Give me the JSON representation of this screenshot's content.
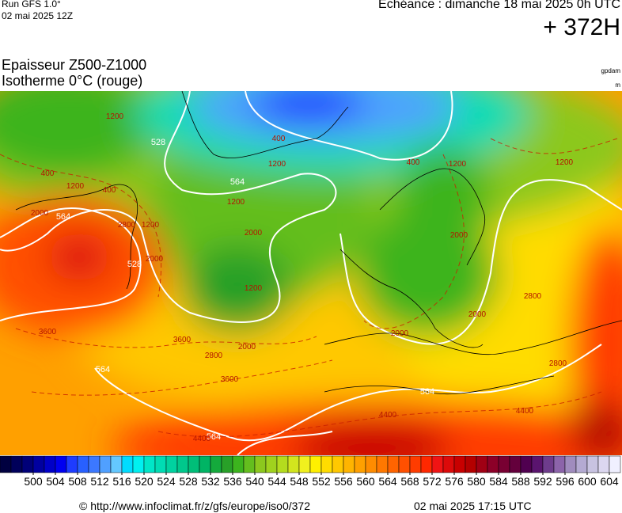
{
  "header": {
    "run": "Run GFS 1.0°",
    "run_date": "02 mai 2025 12Z",
    "valid": "Echéance : dimanche 18 mai 2025 0h UTC",
    "lead": "+ 372H",
    "title": "Epaisseur Z500-Z1000",
    "subtitle": "Isotherme 0°C (rouge)",
    "unit_thickness": "gpdam",
    "unit_isotherm": "m"
  },
  "map": {
    "thickness_labels": [
      "528",
      "564",
      "564",
      "528",
      "564",
      "564",
      "564"
    ],
    "isotherm_labels": [
      "1200",
      "400",
      "1200",
      "400",
      "2000",
      "2800",
      "1200",
      "2000",
      "400",
      "1200",
      "1200",
      "2000",
      "1200",
      "400",
      "1200",
      "1200",
      "2000",
      "2800",
      "2000",
      "2000",
      "3600",
      "3600",
      "2800",
      "2000",
      "3600",
      "4400",
      "4400",
      "4400",
      "2800"
    ]
  },
  "colorbar": {
    "ticks": [
      500,
      504,
      508,
      512,
      516,
      520,
      524,
      528,
      532,
      536,
      540,
      544,
      548,
      552,
      556,
      560,
      564,
      568,
      572,
      576,
      580,
      584,
      588,
      592,
      596,
      600,
      604
    ],
    "colors": [
      "#000040",
      "#00005a",
      "#000078",
      "#0000a0",
      "#0000c8",
      "#0000f0",
      "#1e3cff",
      "#2860ff",
      "#3c78ff",
      "#50a0ff",
      "#64c8ff",
      "#00dcff",
      "#00f0f0",
      "#00e6c8",
      "#00dcb4",
      "#00d2a0",
      "#00c88c",
      "#00be78",
      "#00b464",
      "#14aa3c",
      "#28a028",
      "#3cb41e",
      "#64be1e",
      "#8cc81e",
      "#a0d21e",
      "#b4dc1e",
      "#d2e61e",
      "#f0f01e",
      "#fff000",
      "#ffdc00",
      "#ffc800",
      "#ffb400",
      "#ffa000",
      "#ff8c00",
      "#ff7800",
      "#ff6400",
      "#ff5000",
      "#ff3c00",
      "#ff2800",
      "#f01414",
      "#dc0a0a",
      "#c80000",
      "#b40000",
      "#a00014",
      "#8c0028",
      "#780032",
      "#64003c",
      "#500050",
      "#5a146e",
      "#6e3c8c",
      "#8c64aa",
      "#a08cbe",
      "#b4aad2",
      "#c8c3e1",
      "#dcd7f0",
      "#f0f0ff"
    ]
  },
  "footer": {
    "source": "© http://www.infoclimat.fr/z/gfs/europe/iso0/372",
    "generated": "02 mai 2025 17:15 UTC"
  }
}
